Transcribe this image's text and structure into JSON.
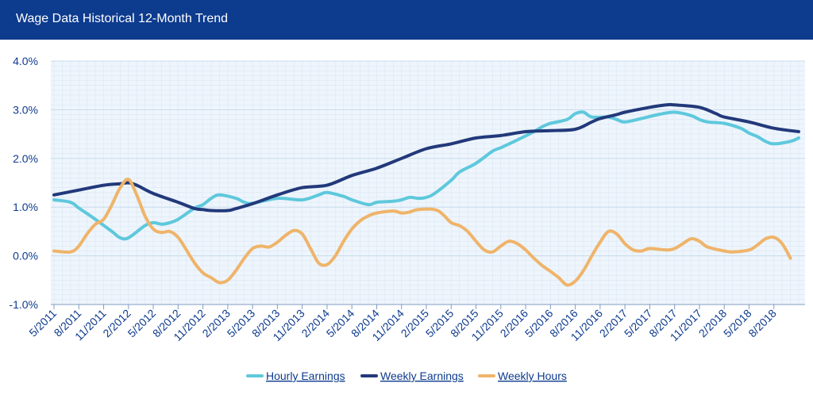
{
  "header": {
    "title": "Wage Data Historical 12-Month Trend"
  },
  "colors": {
    "header_bg": "#0d3b8e",
    "plot_bg": "#eef5fc",
    "grid": "#c8dced",
    "axis_text": "#0d3b8e",
    "hourly": "#5ec8dc",
    "weekly_earnings": "#22397a",
    "weekly_hours": "#efb46a"
  },
  "chart_data": {
    "type": "line",
    "title": "Wage Data Historical 12-Month Trend",
    "xlabel": "",
    "ylabel": "",
    "ylim": [
      -1.0,
      4.0
    ],
    "y_ticks": [
      "-1.0%",
      "0.0%",
      "1.0%",
      "2.0%",
      "3.0%",
      "4.0%"
    ],
    "y_tick_values": [
      -1,
      0,
      1,
      2,
      3,
      4
    ],
    "grid": true,
    "legend_position": "bottom",
    "x_tick_labels": [
      "5/2011",
      "8/2011",
      "11/2011",
      "2/2012",
      "5/2012",
      "8/2012",
      "11/2012",
      "2/2013",
      "5/2013",
      "8/2013",
      "11/2013",
      "2/2014",
      "5/2014",
      "8/2014",
      "11/2014",
      "2/2015",
      "5/2015",
      "8/2015",
      "11/2015",
      "2/2016",
      "5/2016",
      "8/2016",
      "11/2016",
      "2/2017",
      "5/2017",
      "8/2017",
      "11/2017",
      "2/2018",
      "5/2018",
      "8/2018"
    ],
    "x_range": [
      "5/2011",
      "11/2018"
    ],
    "series": [
      {
        "name": "Hourly Earnings",
        "color": "#5ec8dc",
        "points": [
          [
            "5/2011",
            1.15
          ],
          [
            "7/2011",
            1.1
          ],
          [
            "8/2011",
            0.98
          ],
          [
            "10/2011",
            0.75
          ],
          [
            "12/2011",
            0.5
          ],
          [
            "1/2012",
            0.37
          ],
          [
            "2/2012",
            0.37
          ],
          [
            "4/2012",
            0.62
          ],
          [
            "5/2012",
            0.68
          ],
          [
            "6/2012",
            0.65
          ],
          [
            "7/2012",
            0.68
          ],
          [
            "8/2012",
            0.75
          ],
          [
            "10/2012",
            0.98
          ],
          [
            "11/2012",
            1.05
          ],
          [
            "12/2012",
            1.18
          ],
          [
            "1/2013",
            1.25
          ],
          [
            "3/2013",
            1.18
          ],
          [
            "4/2013",
            1.1
          ],
          [
            "5/2013",
            1.08
          ],
          [
            "8/2013",
            1.18
          ],
          [
            "11/2013",
            1.15
          ],
          [
            "1/2014",
            1.25
          ],
          [
            "2/2014",
            1.3
          ],
          [
            "4/2014",
            1.22
          ],
          [
            "5/2014",
            1.15
          ],
          [
            "7/2014",
            1.05
          ],
          [
            "8/2014",
            1.1
          ],
          [
            "10/2014",
            1.12
          ],
          [
            "11/2014",
            1.15
          ],
          [
            "12/2014",
            1.2
          ],
          [
            "1/2015",
            1.18
          ],
          [
            "2/2015",
            1.2
          ],
          [
            "3/2015",
            1.28
          ],
          [
            "5/2015",
            1.55
          ],
          [
            "6/2015",
            1.72
          ],
          [
            "8/2015",
            1.9
          ],
          [
            "10/2015",
            2.15
          ],
          [
            "11/2015",
            2.22
          ],
          [
            "1/2016",
            2.38
          ],
          [
            "3/2016",
            2.55
          ],
          [
            "4/2016",
            2.65
          ],
          [
            "5/2016",
            2.72
          ],
          [
            "7/2016",
            2.8
          ],
          [
            "8/2016",
            2.92
          ],
          [
            "9/2016",
            2.95
          ],
          [
            "10/2016",
            2.85
          ],
          [
            "12/2016",
            2.85
          ],
          [
            "1/2017",
            2.8
          ],
          [
            "2/2017",
            2.75
          ],
          [
            "4/2017",
            2.82
          ],
          [
            "6/2017",
            2.9
          ],
          [
            "8/2017",
            2.95
          ],
          [
            "10/2017",
            2.88
          ],
          [
            "11/2017",
            2.8
          ],
          [
            "12/2017",
            2.75
          ],
          [
            "2/2018",
            2.72
          ],
          [
            "4/2018",
            2.62
          ],
          [
            "5/2018",
            2.52
          ],
          [
            "6/2018",
            2.45
          ],
          [
            "7/2018",
            2.35
          ],
          [
            "8/2018",
            2.3
          ],
          [
            "10/2018",
            2.35
          ],
          [
            "11/2018",
            2.42
          ]
        ]
      },
      {
        "name": "Weekly Earnings",
        "color": "#22397a",
        "points": [
          [
            "5/2011",
            1.25
          ],
          [
            "8/2011",
            1.35
          ],
          [
            "11/2011",
            1.45
          ],
          [
            "1/2012",
            1.48
          ],
          [
            "2/2012",
            1.5
          ],
          [
            "3/2012",
            1.45
          ],
          [
            "5/2012",
            1.28
          ],
          [
            "8/2012",
            1.1
          ],
          [
            "10/2012",
            0.97
          ],
          [
            "11/2012",
            0.95
          ],
          [
            "12/2012",
            0.93
          ],
          [
            "2/2013",
            0.93
          ],
          [
            "3/2013",
            0.97
          ],
          [
            "5/2013",
            1.07
          ],
          [
            "8/2013",
            1.25
          ],
          [
            "11/2013",
            1.4
          ],
          [
            "2/2014",
            1.45
          ],
          [
            "5/2014",
            1.65
          ],
          [
            "8/2014",
            1.8
          ],
          [
            "11/2014",
            2.0
          ],
          [
            "2/2015",
            2.2
          ],
          [
            "5/2015",
            2.3
          ],
          [
            "8/2015",
            2.42
          ],
          [
            "11/2015",
            2.47
          ],
          [
            "2/2016",
            2.55
          ],
          [
            "5/2016",
            2.57
          ],
          [
            "8/2016",
            2.6
          ],
          [
            "10/2016",
            2.75
          ],
          [
            "11/2016",
            2.82
          ],
          [
            "1/2017",
            2.9
          ],
          [
            "2/2017",
            2.95
          ],
          [
            "5/2017",
            3.05
          ],
          [
            "7/2017",
            3.1
          ],
          [
            "8/2017",
            3.1
          ],
          [
            "11/2017",
            3.05
          ],
          [
            "1/2018",
            2.92
          ],
          [
            "2/2018",
            2.85
          ],
          [
            "5/2018",
            2.75
          ],
          [
            "8/2018",
            2.62
          ],
          [
            "11/2018",
            2.55
          ]
        ]
      },
      {
        "name": "Weekly Hours",
        "color": "#efb46a",
        "points": [
          [
            "5/2011",
            0.1
          ],
          [
            "7/2011",
            0.08
          ],
          [
            "8/2011",
            0.2
          ],
          [
            "9/2011",
            0.45
          ],
          [
            "10/2011",
            0.65
          ],
          [
            "11/2011",
            0.75
          ],
          [
            "12/2011",
            1.05
          ],
          [
            "1/2012",
            1.4
          ],
          [
            "2/2012",
            1.57
          ],
          [
            "3/2012",
            1.25
          ],
          [
            "4/2012",
            0.82
          ],
          [
            "5/2012",
            0.55
          ],
          [
            "6/2012",
            0.48
          ],
          [
            "7/2012",
            0.5
          ],
          [
            "8/2012",
            0.38
          ],
          [
            "9/2012",
            0.12
          ],
          [
            "10/2012",
            -0.15
          ],
          [
            "11/2012",
            -0.35
          ],
          [
            "12/2012",
            -0.45
          ],
          [
            "1/2013",
            -0.55
          ],
          [
            "2/2013",
            -0.5
          ],
          [
            "3/2013",
            -0.3
          ],
          [
            "4/2013",
            -0.05
          ],
          [
            "5/2013",
            0.15
          ],
          [
            "6/2013",
            0.2
          ],
          [
            "7/2013",
            0.18
          ],
          [
            "8/2013",
            0.28
          ],
          [
            "9/2013",
            0.42
          ],
          [
            "10/2013",
            0.52
          ],
          [
            "11/2013",
            0.45
          ],
          [
            "12/2013",
            0.15
          ],
          [
            "1/2014",
            -0.15
          ],
          [
            "2/2014",
            -0.18
          ],
          [
            "3/2014",
            0.0
          ],
          [
            "4/2014",
            0.3
          ],
          [
            "5/2014",
            0.55
          ],
          [
            "6/2014",
            0.72
          ],
          [
            "7/2014",
            0.82
          ],
          [
            "8/2014",
            0.88
          ],
          [
            "10/2014",
            0.92
          ],
          [
            "11/2014",
            0.88
          ],
          [
            "12/2014",
            0.9
          ],
          [
            "1/2015",
            0.95
          ],
          [
            "3/2015",
            0.95
          ],
          [
            "4/2015",
            0.85
          ],
          [
            "5/2015",
            0.68
          ],
          [
            "6/2015",
            0.62
          ],
          [
            "7/2015",
            0.5
          ],
          [
            "8/2015",
            0.3
          ],
          [
            "9/2015",
            0.12
          ],
          [
            "10/2015",
            0.08
          ],
          [
            "11/2015",
            0.2
          ],
          [
            "12/2015",
            0.3
          ],
          [
            "1/2016",
            0.25
          ],
          [
            "2/2016",
            0.12
          ],
          [
            "3/2016",
            -0.05
          ],
          [
            "4/2016",
            -0.2
          ],
          [
            "5/2016",
            -0.32
          ],
          [
            "6/2016",
            -0.45
          ],
          [
            "7/2016",
            -0.6
          ],
          [
            "8/2016",
            -0.52
          ],
          [
            "9/2016",
            -0.3
          ],
          [
            "10/2016",
            0.0
          ],
          [
            "11/2016",
            0.28
          ],
          [
            "12/2016",
            0.5
          ],
          [
            "1/2017",
            0.45
          ],
          [
            "2/2017",
            0.25
          ],
          [
            "3/2017",
            0.12
          ],
          [
            "4/2017",
            0.1
          ],
          [
            "5/2017",
            0.15
          ],
          [
            "7/2017",
            0.12
          ],
          [
            "8/2017",
            0.15
          ],
          [
            "9/2017",
            0.25
          ],
          [
            "10/2017",
            0.35
          ],
          [
            "11/2017",
            0.3
          ],
          [
            "12/2017",
            0.18
          ],
          [
            "2/2018",
            0.1
          ],
          [
            "3/2018",
            0.08
          ],
          [
            "5/2018",
            0.12
          ],
          [
            "6/2018",
            0.22
          ],
          [
            "7/2018",
            0.35
          ],
          [
            "8/2018",
            0.38
          ],
          [
            "9/2018",
            0.25
          ],
          [
            "10/2018",
            -0.05
          ]
        ]
      }
    ]
  }
}
